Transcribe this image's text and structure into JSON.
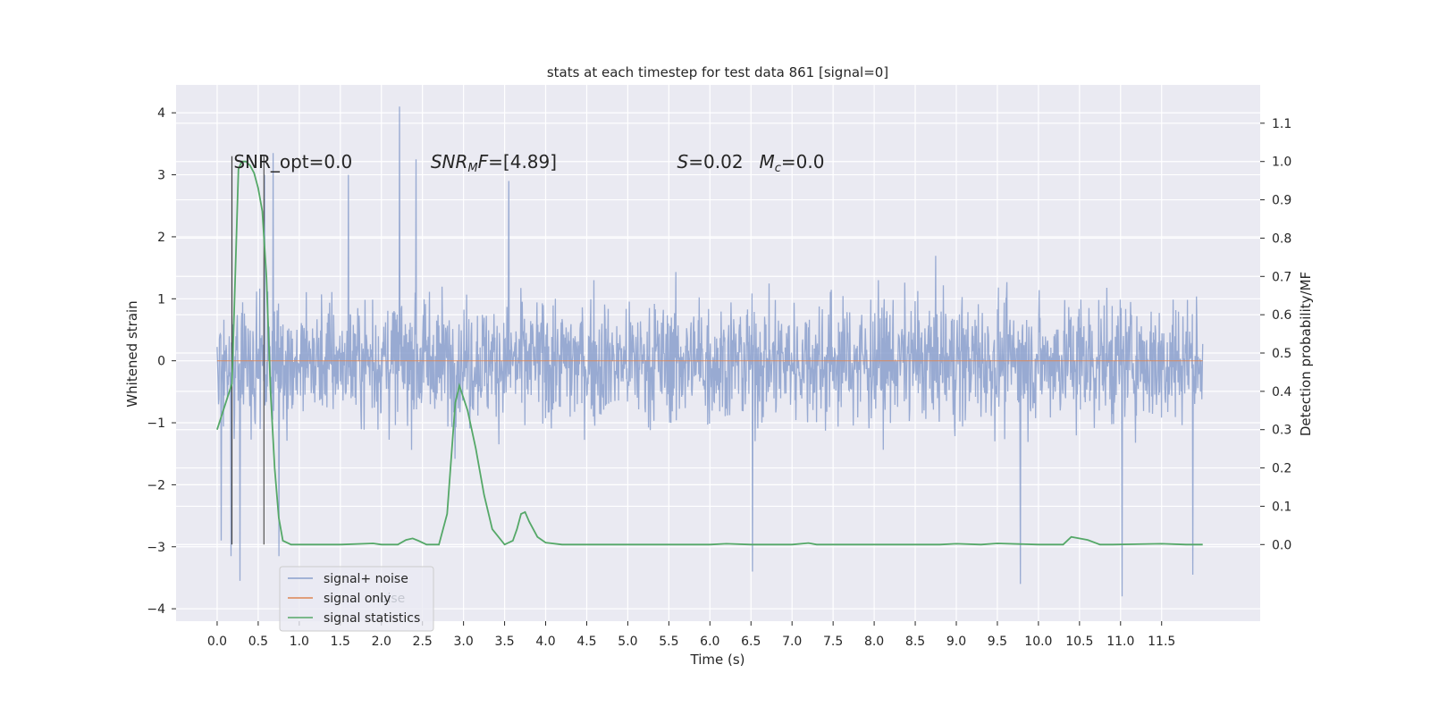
{
  "chart_data": {
    "type": "line",
    "title": "stats at each timestep for test data 861 [signal=0]",
    "xlabel": "Time (s)",
    "ylabel": "Whitened strain",
    "y2label": "Detection probability/MF",
    "xlim": [
      -0.5,
      12.7
    ],
    "ylim": [
      -4.2,
      4.45
    ],
    "y2lim": [
      -0.2,
      1.2
    ],
    "x_ticks": [
      0.0,
      0.5,
      1.0,
      1.5,
      2.0,
      2.5,
      3.0,
      3.5,
      4.0,
      4.5,
      5.0,
      5.5,
      6.0,
      6.5,
      7.0,
      7.5,
      8.0,
      8.5,
      9.0,
      9.5,
      10.0,
      10.5,
      11.0,
      11.5
    ],
    "x_tick_labels": [
      "0.0",
      "0.5",
      "1.0",
      "1.5",
      "2.0",
      "2.5",
      "3.0",
      "3.5",
      "4.0",
      "4.5",
      "5.0",
      "5.5",
      "6.0",
      "6.5",
      "7.0",
      "7.5",
      "8.0",
      "8.5",
      "9.0",
      "9.5",
      "10.0",
      "10.5",
      "11.0",
      "11.5"
    ],
    "y_ticks": [
      -4,
      -3,
      -2,
      -1,
      0,
      1,
      2,
      3,
      4
    ],
    "y_tick_labels": [
      "−4",
      "−3",
      "−2",
      "−1",
      "0",
      "1",
      "2",
      "3",
      "4"
    ],
    "y2_ticks": [
      0.0,
      0.1,
      0.2,
      0.3,
      0.4,
      0.5,
      0.6,
      0.7,
      0.8,
      0.9,
      1.0,
      1.1
    ],
    "y2_tick_labels": [
      "0.0",
      "0.1",
      "0.2",
      "0.3",
      "0.4",
      "0.5",
      "0.6",
      "0.7",
      "0.8",
      "0.9",
      "1.0",
      "1.1"
    ],
    "grid": true,
    "legend_position": "lower-left",
    "series": [
      {
        "name": "signal+ noise",
        "color": "#8a9fcc",
        "axis": "left",
        "x_range": [
          0.0,
          12.0
        ],
        "typical_range": [
          -1.5,
          1.5
        ],
        "peaks": [
          {
            "x": 0.05,
            "y": 2.5
          },
          {
            "x": 0.05,
            "y": -2.9
          },
          {
            "x": 0.17,
            "y": -3.15
          },
          {
            "x": 0.28,
            "y": -3.55
          },
          {
            "x": 0.58,
            "y": 3.0
          },
          {
            "x": 0.68,
            "y": 3.35
          },
          {
            "x": 0.75,
            "y": -3.15
          },
          {
            "x": 1.6,
            "y": 3.0
          },
          {
            "x": 2.22,
            "y": 4.1
          },
          {
            "x": 2.42,
            "y": 3.25
          },
          {
            "x": 3.55,
            "y": 2.9
          },
          {
            "x": 6.52,
            "y": -3.4
          },
          {
            "x": 9.78,
            "y": -3.6
          },
          {
            "x": 11.02,
            "y": -3.8
          },
          {
            "x": 11.88,
            "y": -3.45
          }
        ]
      },
      {
        "name": "signal only",
        "color": "#dd8452",
        "axis": "left",
        "x": [
          0.0,
          12.0
        ],
        "y": [
          0.0,
          0.0
        ]
      },
      {
        "name": "signal statistics",
        "color": "#55a868",
        "axis": "right",
        "x": [
          0.0,
          0.18,
          0.22,
          0.26,
          0.3,
          0.35,
          0.4,
          0.45,
          0.5,
          0.55,
          0.6,
          0.65,
          0.7,
          0.75,
          0.8,
          0.9,
          1.5,
          1.9,
          2.0,
          2.2,
          2.3,
          2.38,
          2.45,
          2.55,
          2.7,
          2.8,
          2.9,
          2.95,
          3.05,
          3.15,
          3.25,
          3.35,
          3.5,
          3.6,
          3.65,
          3.7,
          3.75,
          3.8,
          3.9,
          4.0,
          4.2,
          5.0,
          6.0,
          6.2,
          6.5,
          7.0,
          7.2,
          7.3,
          8.0,
          8.8,
          9.0,
          9.3,
          9.5,
          10.0,
          10.3,
          10.4,
          10.6,
          10.75,
          10.9,
          11.5,
          11.8,
          12.0
        ],
        "y": [
          0.3,
          0.42,
          0.7,
          0.98,
          1.0,
          1.0,
          0.99,
          0.97,
          0.93,
          0.87,
          0.7,
          0.4,
          0.2,
          0.07,
          0.01,
          0.0,
          0.0,
          0.003,
          0.0,
          0.0,
          0.012,
          0.016,
          0.01,
          0.0,
          0.0,
          0.08,
          0.37,
          0.415,
          0.35,
          0.25,
          0.13,
          0.04,
          0.0,
          0.01,
          0.04,
          0.08,
          0.085,
          0.06,
          0.02,
          0.005,
          0.0,
          0.0,
          0.0,
          0.002,
          0.0,
          0.0,
          0.004,
          0.0,
          0.0,
          0.0,
          0.002,
          0.0,
          0.003,
          0.0,
          0.0,
          0.02,
          0.012,
          0.0,
          0.0,
          0.002,
          0.0,
          0.0
        ]
      }
    ],
    "vertical_lines": [
      {
        "x": 0.18,
        "color": "#444444"
      },
      {
        "x": 0.57,
        "color": "#555555"
      }
    ],
    "annotations": [
      {
        "x": 0.2,
        "y": 3.3,
        "text": "SNR_opt=0.0",
        "style": "normal"
      },
      {
        "x": 2.6,
        "y": 3.3,
        "text": "SNR_MF=[4.89]",
        "style": "math"
      },
      {
        "x": 5.6,
        "y": 3.3,
        "text": "S=0.02",
        "style": "math"
      },
      {
        "x": 6.6,
        "y": 3.3,
        "text": "M_c=0.0",
        "style": "math"
      }
    ]
  },
  "legend": {
    "items": [
      "signal+ noise",
      "signal only",
      "signal statistics"
    ],
    "ghost_text": "noise"
  }
}
